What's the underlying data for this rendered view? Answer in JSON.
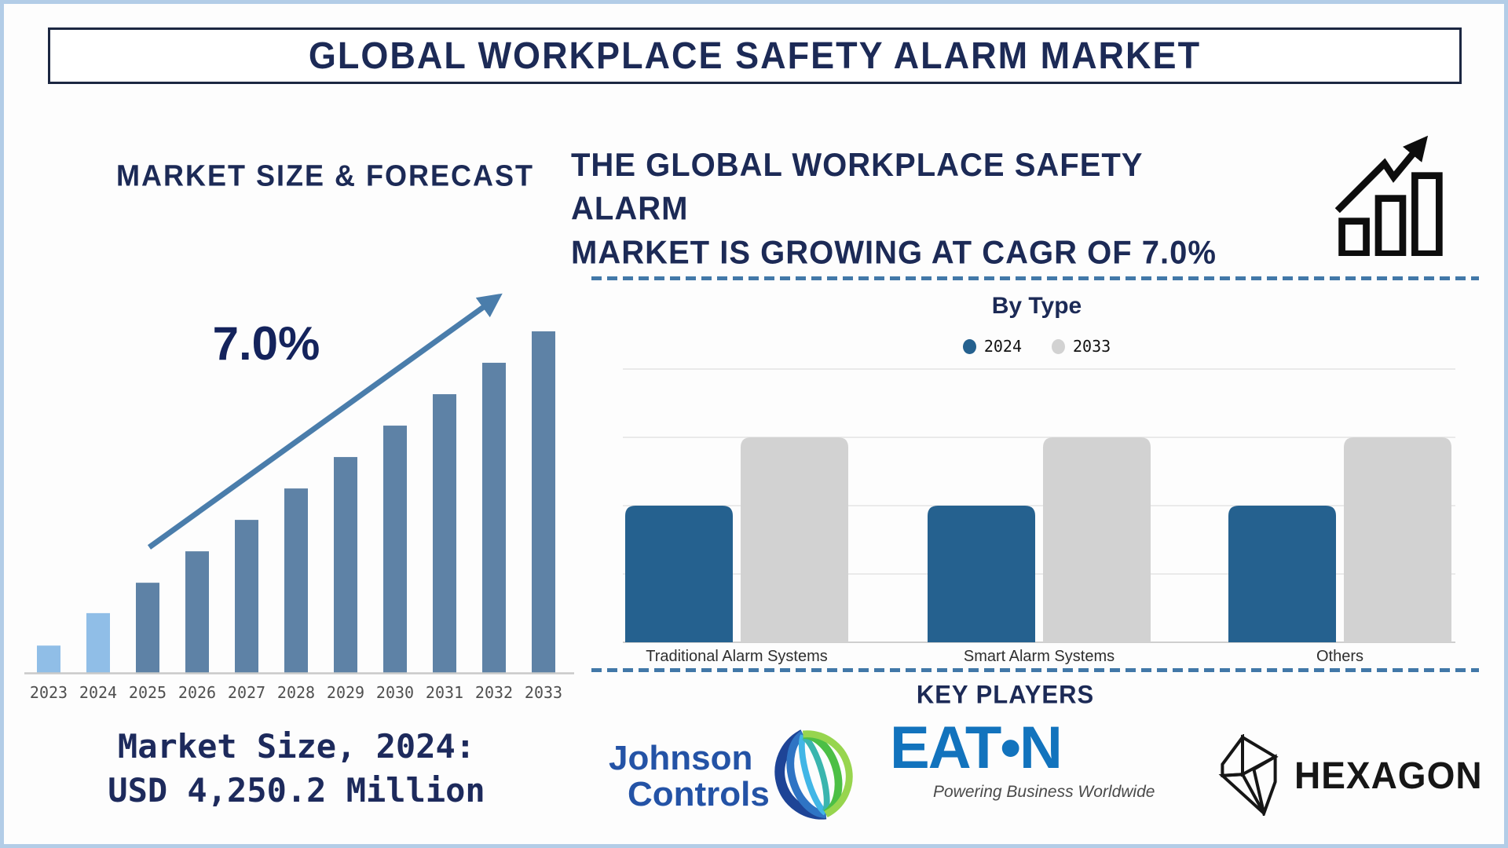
{
  "title": "GLOBAL WORKPLACE SAFETY ALARM MARKET",
  "left_panel": {
    "heading": "MARKET SIZE & FORECAST",
    "market_size_line1": "Market Size, 2024:",
    "market_size_line2": "USD 4,250.2 Million"
  },
  "right_panel": {
    "headline_line1": "THE GLOBAL WORKPLACE SAFETY ALARM",
    "headline_line2": "MARKET IS GROWING AT CAGR OF 7.0%",
    "growth_icon": "bar-chart-rising-arrow-icon",
    "key_players_heading": "KEY PLAYERS",
    "key_players": [
      {
        "name": "Johnson Controls",
        "line1": "Johnson",
        "line2": "Controls",
        "icon": "johnson-controls-globe-icon"
      },
      {
        "name": "Eaton",
        "wordmark": "EAT•N",
        "tagline": "Powering Business Worldwide"
      },
      {
        "name": "Hexagon",
        "wordmark": "HEXAGON",
        "icon": "hexagon-folded-mark-icon"
      }
    ]
  },
  "chart_data": [
    {
      "id": "market_size_forecast",
      "type": "bar",
      "title": "MARKET SIZE & FORECAST",
      "x": [
        "2023",
        "2024",
        "2025",
        "2026",
        "2027",
        "2028",
        "2029",
        "2030",
        "2031",
        "2032",
        "2033"
      ],
      "values_pct_of_tallest": [
        8,
        17.5,
        26.4,
        35.6,
        44.8,
        54,
        63.2,
        72.4,
        81.6,
        90.8,
        100
      ],
      "bar_colors": [
        "#90bee7",
        "#90bee7",
        "#5e82a6",
        "#5e82a6",
        "#5e82a6",
        "#5e82a6",
        "#5e82a6",
        "#5e82a6",
        "#5e82a6",
        "#5e82a6",
        "#5e82a6"
      ],
      "ylabel": "",
      "y_axis_shown": false,
      "annotations": {
        "cagr_label": "7.0%",
        "trend_arrow": true
      },
      "anchor_value_note": "Market Size, 2024: USD 4,250.2 Million"
    },
    {
      "id": "by_type",
      "type": "grouped_bar",
      "title": "By Type",
      "categories": [
        "Traditional Alarm Systems",
        "Smart Alarm Systems",
        "Others"
      ],
      "series": [
        {
          "name": "2024",
          "color": "#25618f",
          "values": [
            2,
            2,
            2
          ]
        },
        {
          "name": "2033",
          "color": "#d2d2d2",
          "values": [
            3,
            3,
            3
          ]
        }
      ],
      "ylim": [
        0,
        4
      ],
      "gridlines": true,
      "y_axis_labeled": false,
      "legend_position": "top-center"
    }
  ],
  "colors": {
    "navy": "#1c2a56",
    "steel_blue_bar": "#5e82a6",
    "light_blue_bar": "#90bee7",
    "trend_arrow": "#4a7dab",
    "bytype_2024": "#25618f",
    "bytype_2033": "#d2d2d2",
    "dashed_separator": "#4278a8",
    "axis_gray": "#c9c9c9",
    "gridline_gray": "#e4e4e4",
    "year_label_gray": "#4f4f4f",
    "jc_blue": "#2453a6",
    "eaton_blue": "#1273bd",
    "hexagon_black": "#161616",
    "page_border": "#b3cde7"
  }
}
